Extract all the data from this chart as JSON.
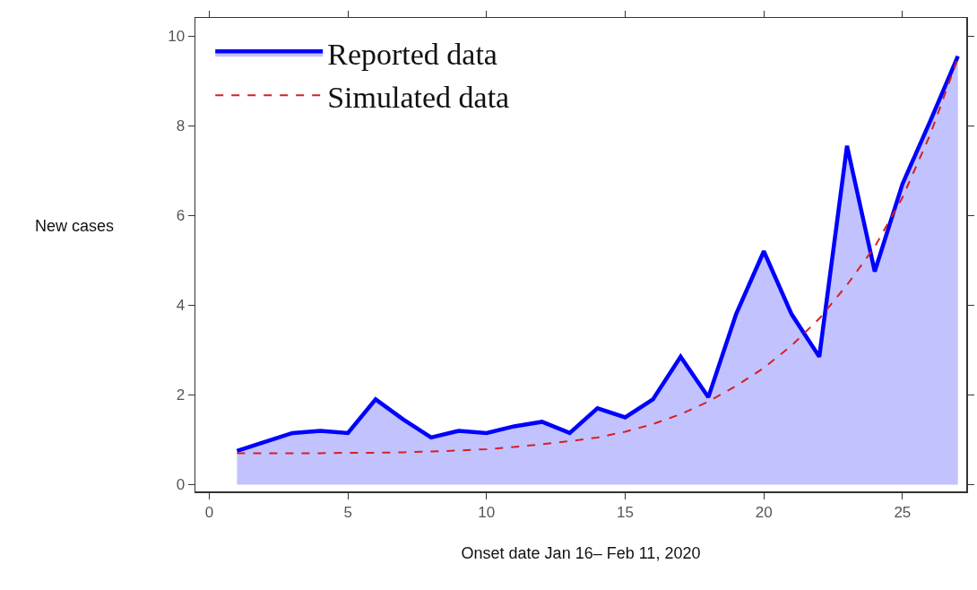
{
  "chart_data": {
    "type": "line",
    "xlabel": "Onset date Jan 16– Feb 11, 2020",
    "ylabel": "New cases",
    "x": [
      1,
      2,
      3,
      4,
      5,
      6,
      7,
      8,
      9,
      10,
      11,
      12,
      13,
      14,
      15,
      16,
      17,
      18,
      19,
      20,
      21,
      22,
      23,
      24,
      25,
      26,
      27
    ],
    "series": [
      {
        "name": "Reported data",
        "type": "area",
        "color": "#0000ff",
        "line_style": "solid",
        "values": [
          0.75,
          0.95,
          1.15,
          1.2,
          1.15,
          1.9,
          1.45,
          1.05,
          1.2,
          1.15,
          1.3,
          1.4,
          1.15,
          1.7,
          1.5,
          1.9,
          2.85,
          1.95,
          3.8,
          5.2,
          3.8,
          2.85,
          7.55,
          4.75,
          6.7,
          8.1,
          9.55
        ]
      },
      {
        "name": "Simulated data",
        "color": "#d62020",
        "line_style": "dashed",
        "values": [
          0.7,
          0.7,
          0.7,
          0.7,
          0.71,
          0.71,
          0.72,
          0.74,
          0.76,
          0.79,
          0.84,
          0.9,
          0.97,
          1.05,
          1.18,
          1.35,
          1.57,
          1.85,
          2.2,
          2.6,
          3.1,
          3.7,
          4.45,
          5.3,
          6.4,
          7.8,
          9.5
        ]
      }
    ],
    "xlim": [
      -0.5,
      27.3
    ],
    "xticks": [
      0,
      5,
      10,
      15,
      20,
      25
    ],
    "ylim": [
      -0.15,
      10.4
    ],
    "yticks": [
      0,
      2,
      4,
      6,
      8,
      10
    ],
    "grid": false,
    "legend": "top left",
    "marker": "none"
  }
}
